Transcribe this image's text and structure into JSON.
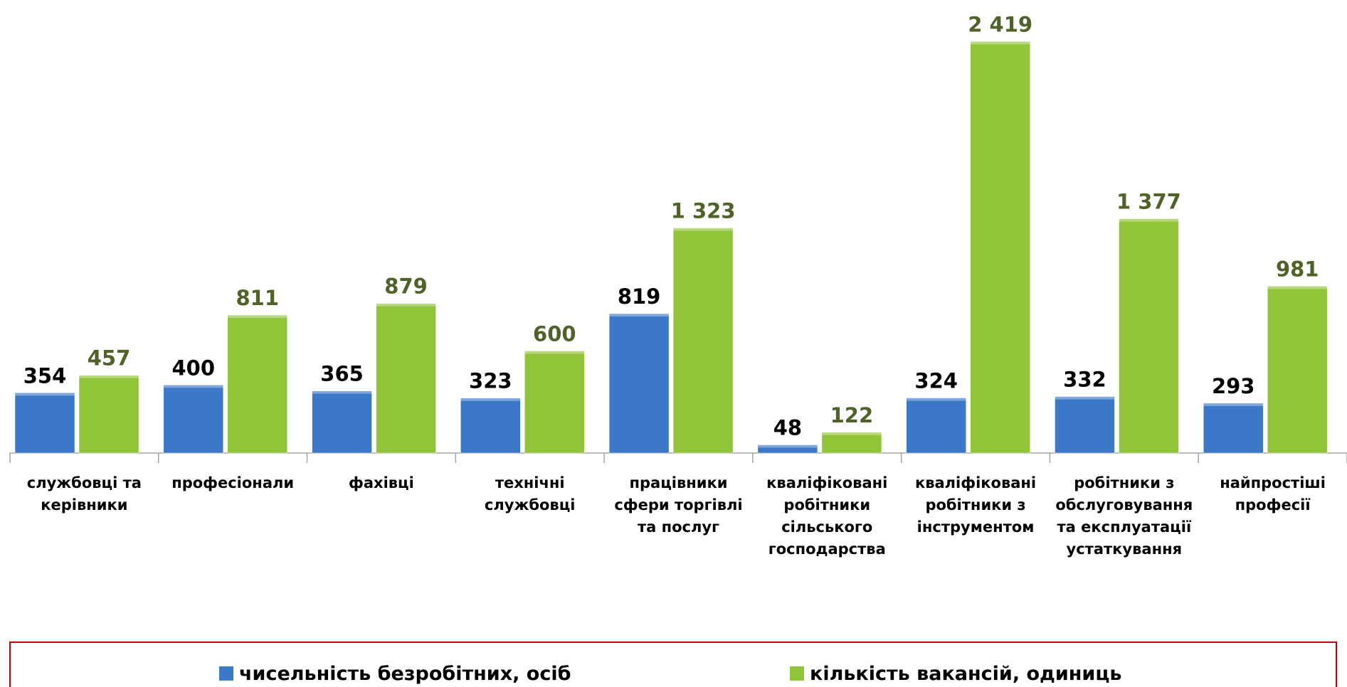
{
  "chart_data": {
    "type": "bar",
    "categories": [
      "службовці та керівники",
      "професіонали",
      "фахівці",
      "технічні службовці",
      "працівники сфери торгівлі та послуг",
      "кваліфіковані робітники сільського господарства",
      "кваліфіковані робітники з інструментом",
      "робітники з обслуговування та експлуатації устаткування",
      "найпростіші професії"
    ],
    "series": [
      {
        "name": "чисельність безробітних, осіб",
        "color": "#3c78c8",
        "label_color": "#000000",
        "values": [
          354,
          400,
          365,
          323,
          819,
          48,
          324,
          332,
          293
        ]
      },
      {
        "name": "кількість вакансій, одиниць",
        "color": "#92c43a",
        "label_color": "#4f6228",
        "values": [
          457,
          811,
          879,
          600,
          1323,
          122,
          2419,
          1377,
          981
        ],
        "value_labels": [
          "457",
          "811",
          "879",
          "600",
          "1 323",
          "122",
          "2 419",
          "1 377",
          "981"
        ]
      }
    ],
    "ylim": [
      0,
      2600
    ],
    "legend": "bottom"
  }
}
